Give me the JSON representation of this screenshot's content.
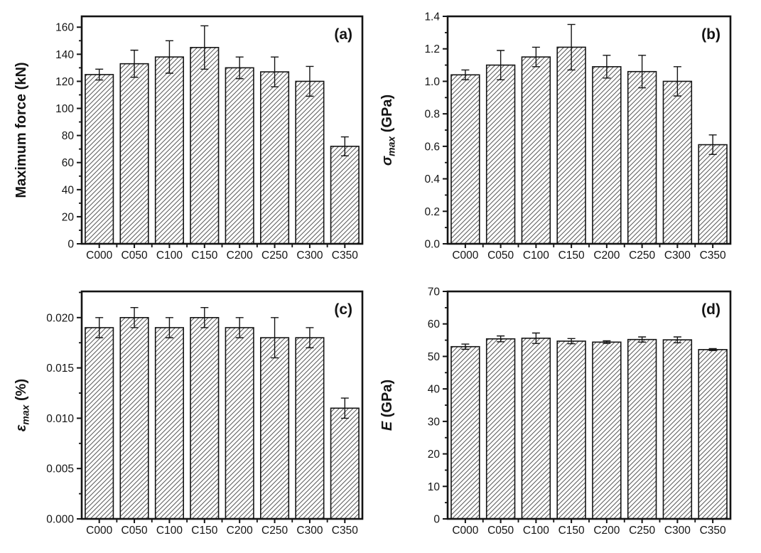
{
  "figure": {
    "background": "#ffffff",
    "ink_color": "#141414",
    "hatch_color": "#5a5a5a",
    "panel_labels": [
      "(a)",
      "(b)",
      "(c)",
      "(d)"
    ]
  },
  "chart_data": [
    {
      "id": "a",
      "type": "bar",
      "panel_label": "(a)",
      "title": "",
      "xlabel": "",
      "ylabel": {
        "text": "Maximum force (kN)"
      },
      "categories": [
        "C000",
        "C050",
        "C100",
        "C150",
        "C200",
        "C250",
        "C300",
        "C350"
      ],
      "values": [
        125,
        133,
        138,
        145,
        130,
        127,
        120,
        72
      ],
      "errors": [
        4,
        10,
        12,
        16,
        8,
        11,
        11,
        7
      ],
      "ylim": [
        0,
        168
      ],
      "yticks": [
        0,
        20,
        40,
        60,
        80,
        100,
        120,
        140,
        160
      ],
      "ytick_labels": [
        "0",
        "20",
        "40",
        "60",
        "80",
        "100",
        "120",
        "140",
        "160"
      ],
      "yminor_step": 10,
      "grid": false,
      "legend": null,
      "bar_style": "white-diagonal-hatch"
    },
    {
      "id": "b",
      "type": "bar",
      "panel_label": "(b)",
      "title": "",
      "xlabel": "",
      "ylabel": {
        "symbol": "σ",
        "subscript": "max",
        "unit": " (GPa)"
      },
      "categories": [
        "C000",
        "C050",
        "C100",
        "C150",
        "C200",
        "C250",
        "C300",
        "C350"
      ],
      "values": [
        1.04,
        1.1,
        1.15,
        1.21,
        1.09,
        1.06,
        1.0,
        0.61
      ],
      "errors": [
        0.03,
        0.09,
        0.06,
        0.14,
        0.07,
        0.1,
        0.09,
        0.06
      ],
      "ylim": [
        0,
        1.4
      ],
      "yticks": [
        0,
        0.2,
        0.4,
        0.6,
        0.8,
        1.0,
        1.2,
        1.4
      ],
      "ytick_labels": [
        "0.0",
        "0.2",
        "0.4",
        "0.6",
        "0.8",
        "1.0",
        "1.2",
        "1.4"
      ],
      "yminor_step": 0.1,
      "grid": false,
      "legend": null,
      "bar_style": "white-diagonal-hatch"
    },
    {
      "id": "c",
      "type": "bar",
      "panel_label": "(c)",
      "title": "",
      "xlabel": "",
      "ylabel": {
        "symbol": "ε",
        "subscript": "max",
        "unit": " (%)"
      },
      "categories": [
        "C000",
        "C050",
        "C100",
        "C150",
        "C200",
        "C250",
        "C300",
        "C350"
      ],
      "values": [
        0.019,
        0.02,
        0.019,
        0.02,
        0.019,
        0.018,
        0.018,
        0.011
      ],
      "errors": [
        0.001,
        0.001,
        0.001,
        0.001,
        0.001,
        0.002,
        0.001,
        0.001
      ],
      "ylim": [
        0,
        0.0226
      ],
      "yticks": [
        0,
        0.005,
        0.01,
        0.015,
        0.02
      ],
      "ytick_labels": [
        "0.000",
        "0.005",
        "0.010",
        "0.015",
        "0.020"
      ],
      "yminor_step": 0.0025,
      "grid": false,
      "legend": null,
      "bar_style": "white-diagonal-hatch"
    },
    {
      "id": "d",
      "type": "bar",
      "panel_label": "(d)",
      "title": "",
      "xlabel": "",
      "ylabel": {
        "symbol": "E",
        "subscript": "",
        "unit": " (GPa)"
      },
      "categories": [
        "C000",
        "C050",
        "C100",
        "C150",
        "C200",
        "C250",
        "C300",
        "C350"
      ],
      "values": [
        53.0,
        55.4,
        55.6,
        54.7,
        54.4,
        55.2,
        55.1,
        52.1
      ],
      "errors": [
        0.8,
        0.9,
        1.6,
        0.8,
        0.4,
        0.8,
        0.9,
        0.3
      ],
      "ylim": [
        0,
        70
      ],
      "yticks": [
        0,
        10,
        20,
        30,
        40,
        50,
        60,
        70
      ],
      "ytick_labels": [
        "0",
        "10",
        "20",
        "30",
        "40",
        "50",
        "60",
        "70"
      ],
      "yminor_step": 5,
      "grid": false,
      "legend": null,
      "bar_style": "white-diagonal-hatch"
    }
  ]
}
